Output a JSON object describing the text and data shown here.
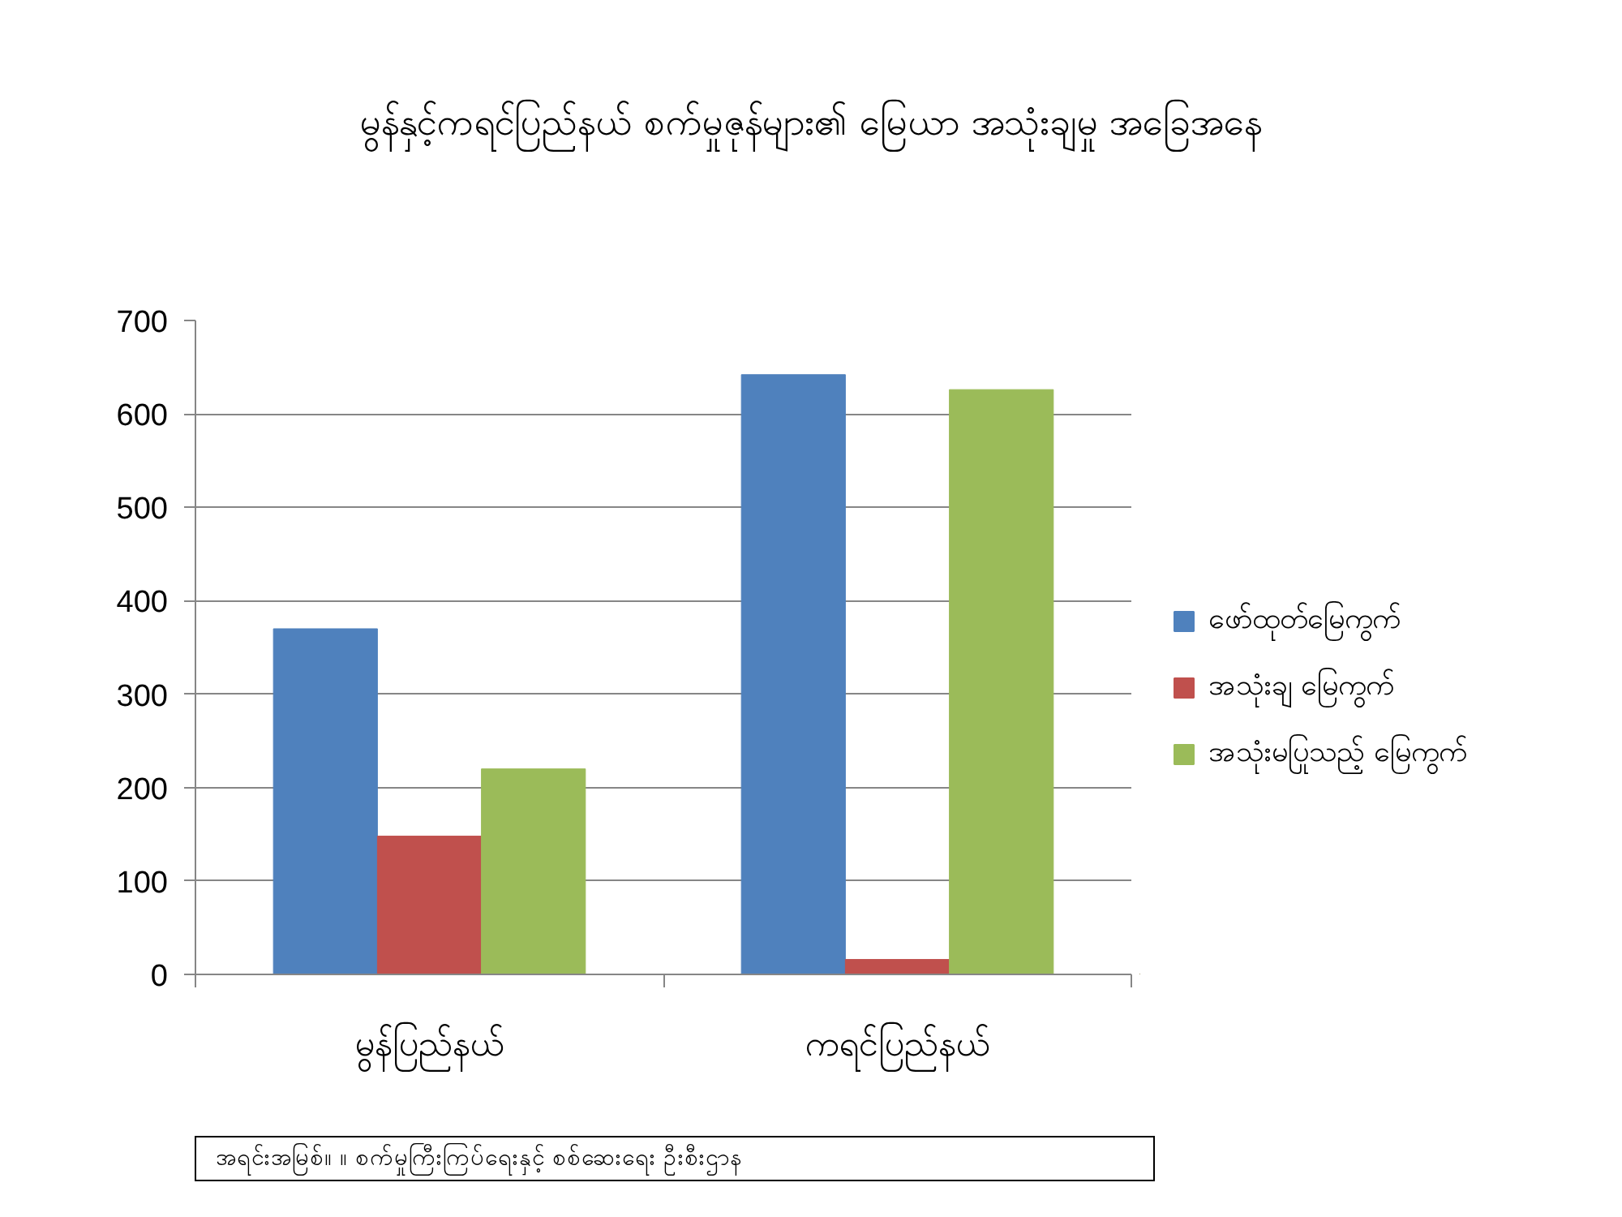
{
  "chart_data": {
    "type": "bar",
    "title": "မွန်နှင့်ကရင်ပြည်နယ် စက်မှုဇုန်များ၏ မြေယာ အသုံးချမှု အခြေအနေ",
    "categories": [
      "မွန်ပြည်နယ်",
      "ကရင်ပြည်နယ်"
    ],
    "series": [
      {
        "name": "ဖော်ထုတ်မြေကွက်",
        "color": "#4f81bd",
        "values": [
          370,
          642
        ]
      },
      {
        "name": "အသုံးချ မြေကွက်",
        "color": "#c0504d",
        "values": [
          148,
          16
        ]
      },
      {
        "name": "အသုံးမပြုသည့် မြေကွက်",
        "color": "#9bbb59",
        "values": [
          220,
          626
        ]
      }
    ],
    "ylim": [
      0,
      700
    ],
    "yticks": [
      0,
      100,
      200,
      300,
      400,
      500,
      600,
      700
    ],
    "grid": "y",
    "legend": "right",
    "annotations": [
      "အရင်းအမြစ်။ ။ စက်မှုကြီးကြပ်ရေးနှင့် စစ်ဆေးရေး ဦးစီးဌာန"
    ]
  }
}
